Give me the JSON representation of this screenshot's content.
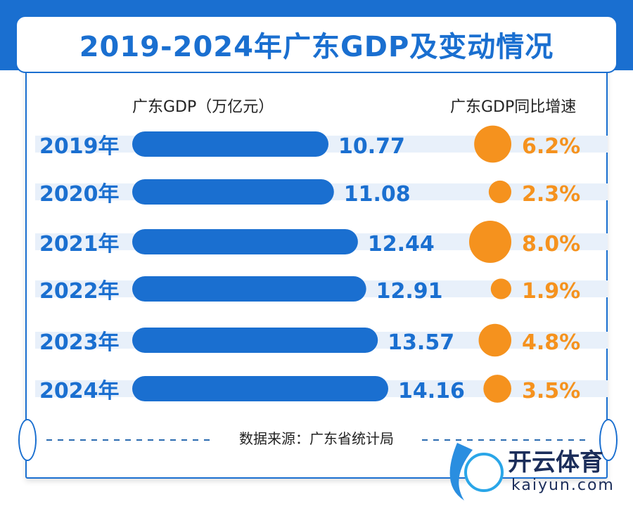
{
  "chart_data": {
    "type": "bar",
    "title": "2019-2024年广东GDP及变动情况",
    "categories": [
      "2019年",
      "2020年",
      "2021年",
      "2022年",
      "2023年",
      "2024年"
    ],
    "series": [
      {
        "name": "广东GDP（万亿元）",
        "values": [
          10.77,
          11.08,
          12.44,
          12.91,
          13.57,
          14.16
        ],
        "labels": [
          "10.77",
          "11.08",
          "12.44",
          "12.91",
          "13.57",
          "14.16"
        ]
      },
      {
        "name": "广东GDP同比增速",
        "values": [
          6.2,
          2.3,
          8.0,
          1.9,
          4.8,
          3.5
        ],
        "labels": [
          "6.2%",
          "2.3%",
          "8.0%",
          "1.9%",
          "4.8%",
          "3.5%"
        ]
      }
    ],
    "source": "数据来源：广东省统计局"
  },
  "colors": {
    "bar": "#1a6fd0",
    "circle": "#f5921e",
    "band": "#e8f0fa"
  },
  "logo": {
    "name": "开云体育",
    "url": "kaiyun.com"
  }
}
